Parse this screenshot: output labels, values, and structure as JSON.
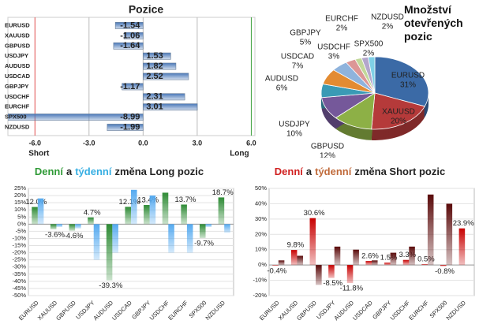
{
  "chart_data": [
    {
      "type": "hbar",
      "title": "Pozice",
      "categories": [
        "EURUSD",
        "XAUUSD",
        "GBPUSD",
        "USDJPY",
        "AUDUSD",
        "USDCAD",
        "GBPJPY",
        "USDCHF",
        "EURCHF",
        "SPX500",
        "NZDUSD"
      ],
      "values": [
        -1.54,
        -1.06,
        -1.64,
        1.53,
        1.82,
        2.52,
        -1.17,
        2.31,
        3.01,
        -8.99,
        -1.99
      ],
      "color": "#4a78b8",
      "xlim": [
        -7.5,
        6.2
      ],
      "xticks": [
        {
          "value": -6,
          "label": "-6.0"
        },
        {
          "value": -3,
          "label": "-3.0"
        },
        {
          "value": 0,
          "label": "0.0"
        },
        {
          "value": 3,
          "label": "3.0"
        },
        {
          "value": 6,
          "label": "6.0"
        }
      ],
      "annotations": [
        "Short",
        "Long"
      ]
    },
    {
      "type": "pie",
      "title": "Množství otevřených pozic",
      "categories": [
        "EURUSD",
        "XAUUSD",
        "GBPUSD",
        "USDJPY",
        "AUDUSD",
        "USDCAD",
        "GBPJPY",
        "USDCHF",
        "EURCHF",
        "SPX500",
        "NZDUSD"
      ],
      "values": [
        31,
        20,
        12,
        10,
        6,
        7,
        5,
        3,
        2,
        2,
        2
      ],
      "value_labels": [
        "31%",
        "20%",
        "12%",
        "10%",
        "6%",
        "7%",
        "5%",
        "3%",
        "2%",
        "2%",
        "2%"
      ],
      "colors": [
        "#3b6aa6",
        "#b53a3a",
        "#8db046",
        "#75589a",
        "#3a9ab5",
        "#e38b32",
        "#8fb3dc",
        "#dc9696",
        "#c2d89a",
        "#b3a6cc",
        "#7fd0e6"
      ]
    },
    {
      "type": "grouped_bar",
      "title": [
        {
          "text": "Denní",
          "color": "#2f9a36"
        },
        {
          "text": "a"
        },
        {
          "text": "týdenní",
          "color": "#36aee2"
        },
        {
          "text": "změna Long pozic"
        }
      ],
      "categories": [
        "EURUSD",
        "XAUUSD",
        "GBPUSD",
        "USDJPY",
        "AUDUSD",
        "USDCAD",
        "GBPJPY",
        "USDCHF",
        "EURCHF",
        "SPX500",
        "NZDUSD"
      ],
      "series": [
        {
          "color": "#2e8b35",
          "values": [
            12.0,
            -3.6,
            -4.6,
            4.7,
            -39.3,
            12.1,
            13.4,
            22,
            13.7,
            -9.7,
            18.7
          ],
          "value_labels": [
            "12.0%",
            "-3.6%",
            "-4.6%",
            "4.7%",
            "-39.3%",
            "12.1%",
            "13.4%",
            null,
            "13.7%",
            "-9.7%",
            "18.7%"
          ]
        },
        {
          "color": "#55aaf0",
          "values": [
            18,
            -2,
            -3,
            -25,
            -20,
            24,
            20,
            -20,
            -20,
            -2,
            -6
          ]
        }
      ],
      "ylim": [
        -50,
        25
      ],
      "yticks": [
        {
          "value": 25,
          "label": "25%"
        },
        {
          "value": 20,
          "label": "20%"
        },
        {
          "value": 15,
          "label": "15%"
        },
        {
          "value": 10,
          "label": "10%"
        },
        {
          "value": 5,
          "label": "5%"
        },
        {
          "value": 0,
          "label": "0%"
        },
        {
          "value": -5,
          "label": "-5%"
        },
        {
          "value": -10,
          "label": "-10%"
        },
        {
          "value": -15,
          "label": "-15%"
        },
        {
          "value": -20,
          "label": "-20%"
        },
        {
          "value": -25,
          "label": "-25%"
        },
        {
          "value": -30,
          "label": "-30%"
        },
        {
          "value": -35,
          "label": "-35%"
        },
        {
          "value": -40,
          "label": "-40%"
        },
        {
          "value": -45,
          "label": "-45%"
        },
        {
          "value": -50,
          "label": "-50%"
        }
      ],
      "grid": true
    },
    {
      "type": "grouped_bar",
      "title": [
        {
          "text": "Denní",
          "color": "#d02020"
        },
        {
          "text": "a"
        },
        {
          "text": "týdenní",
          "color": "#c06a3a"
        },
        {
          "text": "změna Short pozic"
        }
      ],
      "categories": [
        "EURUSD",
        "XAUUSD",
        "GBPUSD",
        "USDJPY",
        "AUDUSD",
        "USDCAD",
        "GBPJPY",
        "USDCHF",
        "EURCHF",
        "SPX500",
        "NZDUSD"
      ],
      "series": [
        {
          "color": "#c80000",
          "values": [
            -0.4,
            9.8,
            30.6,
            -8.5,
            -11.8,
            2.6,
            1.5,
            3.3,
            0.5,
            -0.8,
            23.9
          ],
          "value_labels": [
            "-0.4%",
            "9.8%",
            "30.6%",
            "-8.5%",
            "-11.8%",
            "2.6%",
            "1.5%",
            "3.3%",
            "0.5%",
            "-0.8%",
            "23.9%"
          ]
        },
        {
          "color": "#5a0a0a",
          "values": [
            3,
            6,
            -13,
            12,
            10,
            3,
            8,
            12,
            46,
            40,
            0
          ]
        }
      ],
      "ylim": [
        -20,
        50
      ],
      "yticks": [
        {
          "value": 50,
          "label": "50%"
        },
        {
          "value": 40,
          "label": "40%"
        },
        {
          "value": 30,
          "label": "30%"
        },
        {
          "value": 20,
          "label": "20%"
        },
        {
          "value": 10,
          "label": "10%"
        },
        {
          "value": 0,
          "label": "0%"
        },
        {
          "value": -10,
          "label": "-10%"
        },
        {
          "value": -20,
          "label": "-20%"
        }
      ],
      "grid": true
    }
  ]
}
